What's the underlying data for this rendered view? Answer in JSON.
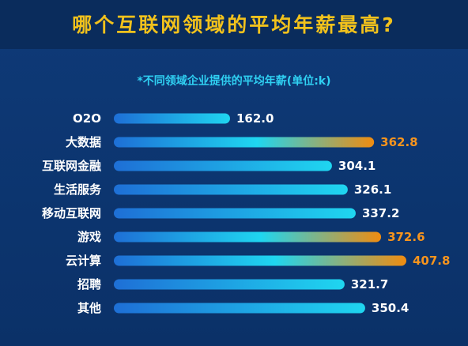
{
  "header": {
    "title": "哪个互联网领域的平均年薪最高?",
    "subtitle": "*不同领域企业提供的平均年薪(单位:k)"
  },
  "colors": {
    "title": "#f2c21c",
    "subtitle": "#2fd0f2",
    "bar_start": "#1e6fd6",
    "bar_end": "#1fd6f0",
    "highlight_end": "#f08c10",
    "highlight_text": "#f7941d",
    "normal_text": "#ffffff"
  },
  "chart_data": {
    "type": "bar",
    "orientation": "horizontal",
    "title": "哪个互联网领域的平均年薪最高?",
    "subtitle": "*不同领域企业提供的平均年薪(单位:k)",
    "categories": [
      "O2O",
      "大数据",
      "互联网金融",
      "生活服务",
      "移动互联网",
      "游戏",
      "云计算",
      "招聘",
      "其他"
    ],
    "values": [
      162.0,
      362.8,
      304.1,
      326.1,
      337.2,
      372.6,
      407.8,
      321.7,
      350.4
    ],
    "value_labels": [
      "162.0",
      "362.8",
      "304.1",
      "326.1",
      "337.2",
      "372.6",
      "407.8",
      "321.7",
      "350.4"
    ],
    "highlighted": [
      "大数据",
      "游戏",
      "云计算"
    ],
    "xlabel": "",
    "ylabel": "",
    "xlim": [
      0,
      407.8
    ],
    "grid": false,
    "legend": "none"
  }
}
